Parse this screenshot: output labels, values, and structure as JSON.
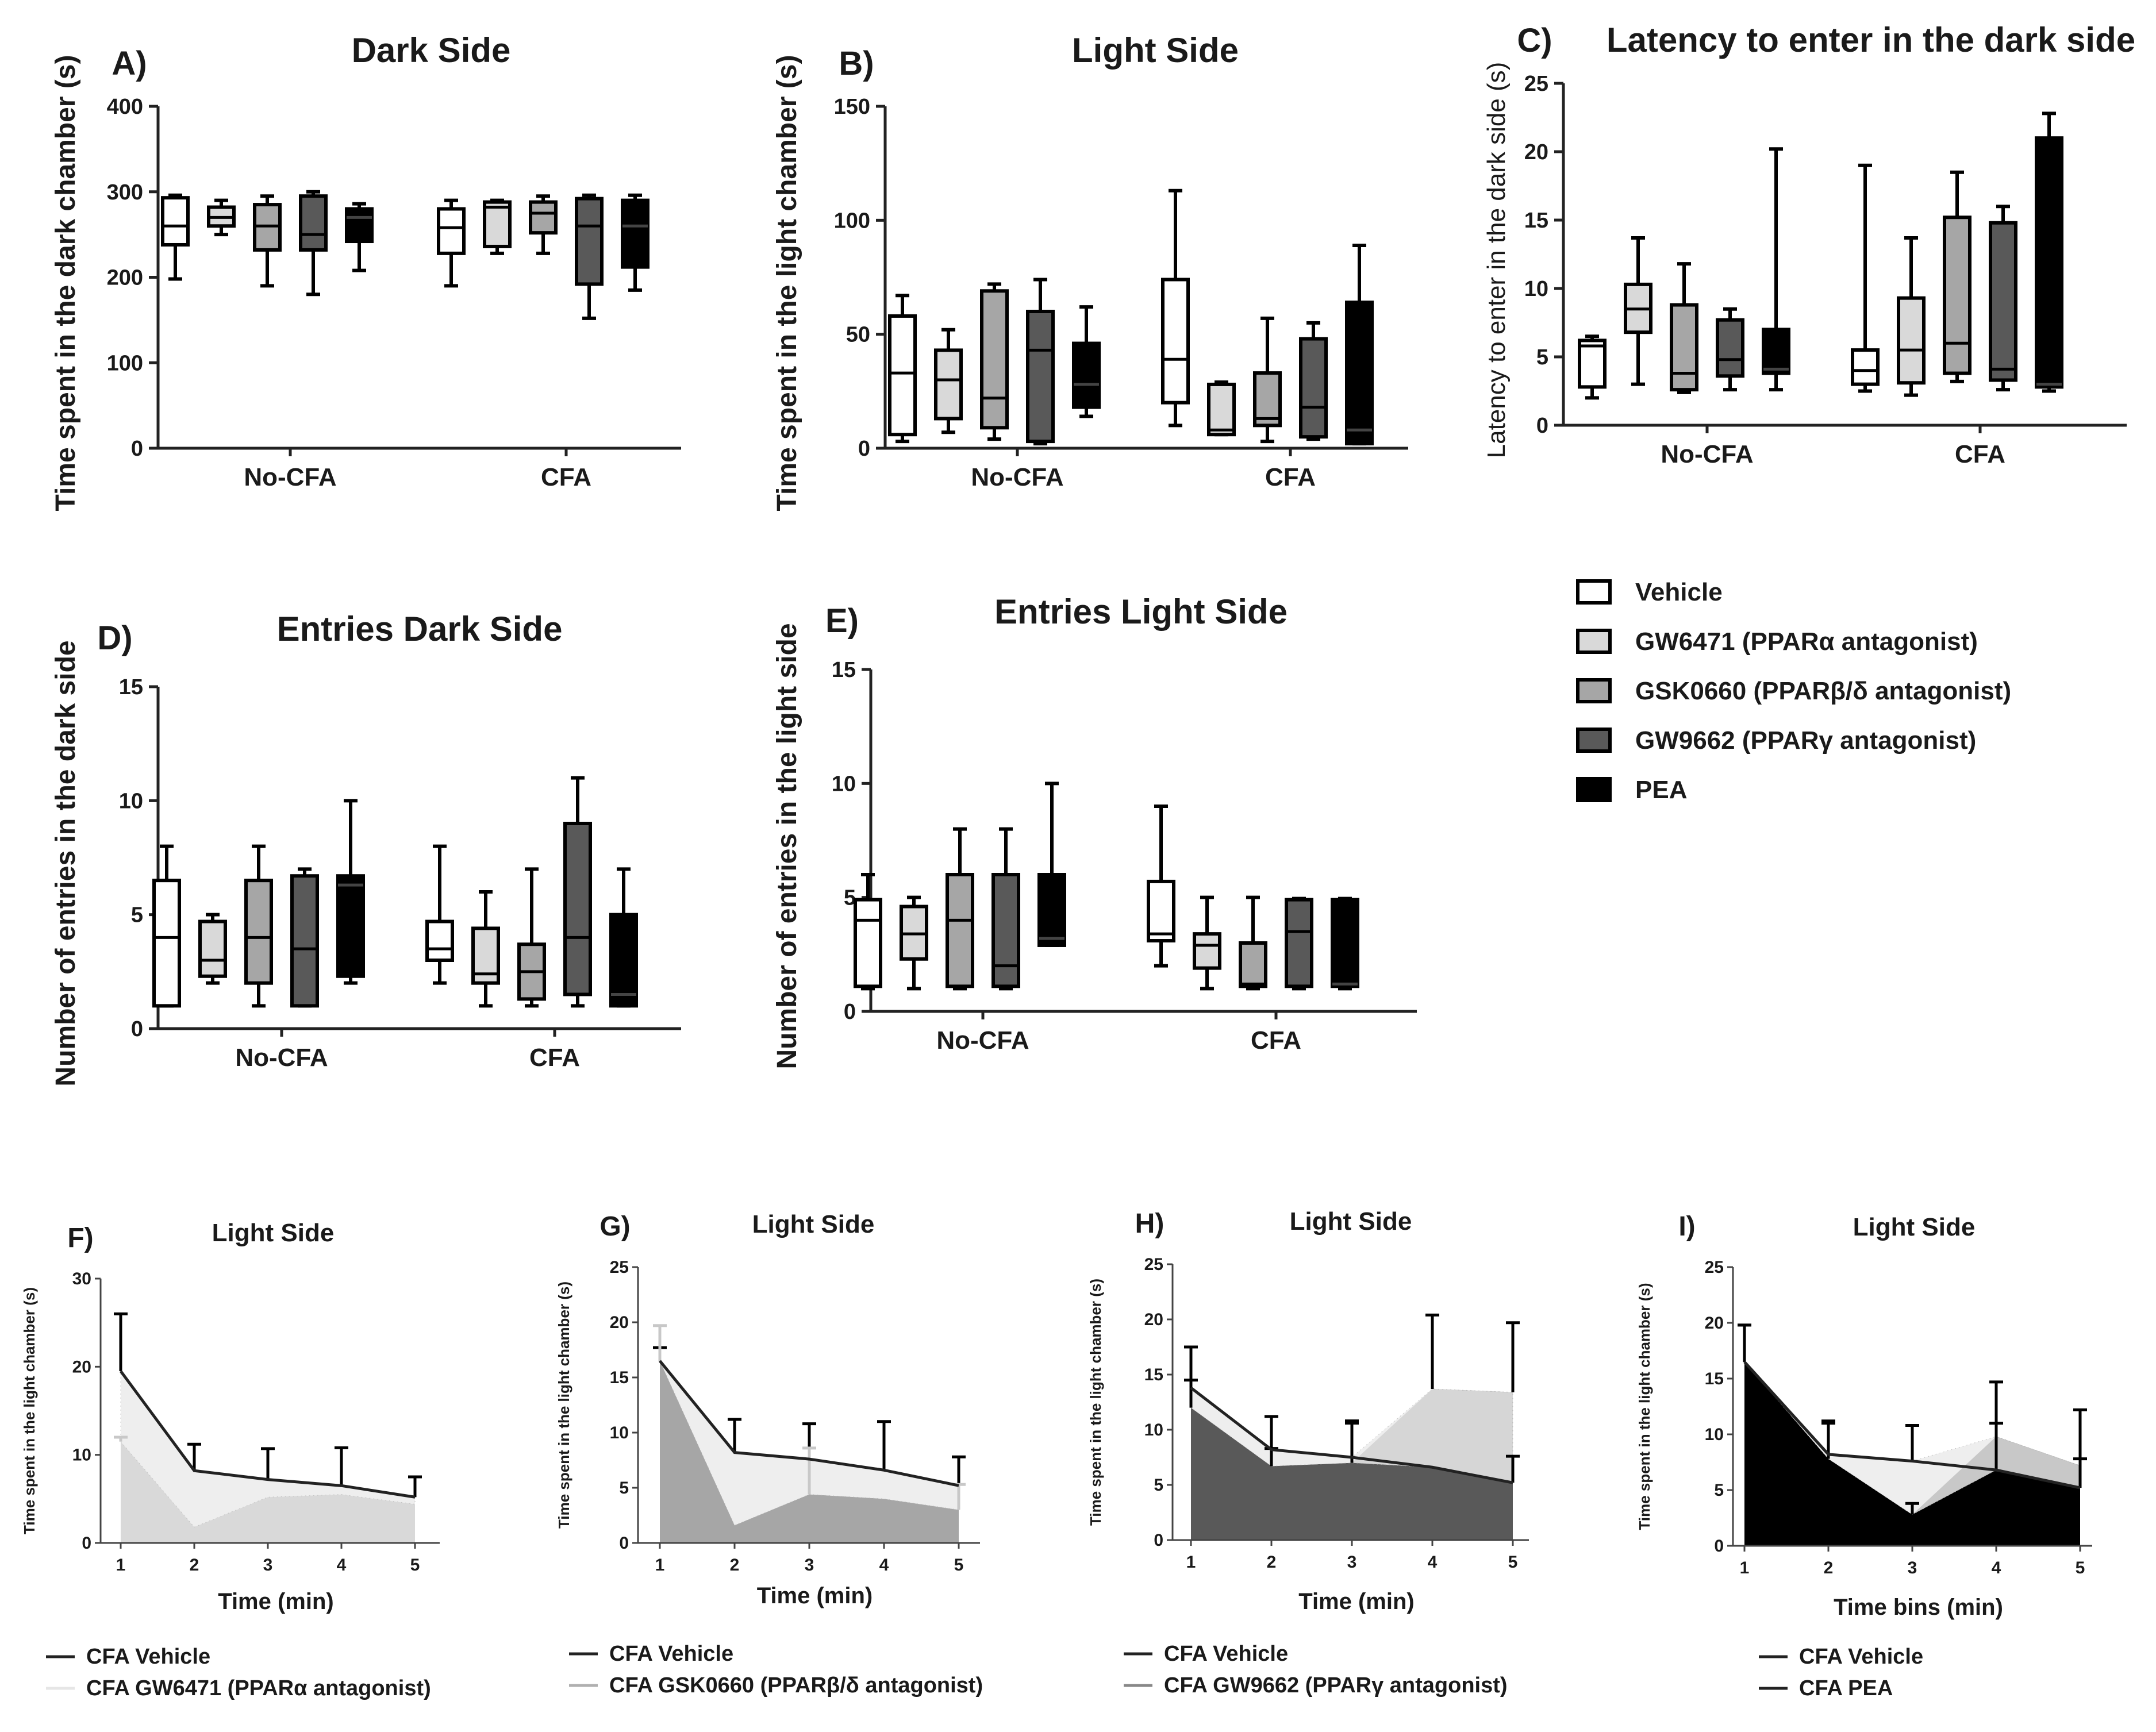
{
  "groups": [
    "No-CFA",
    "CFA"
  ],
  "legend": {
    "items": [
      {
        "label": "Vehicle",
        "color": "#ffffff"
      },
      {
        "label": "GW6471 (PPARα antagonist)",
        "color": "#d9d9d9"
      },
      {
        "label": "GSK0660 (PPARβ/δ antagonist)",
        "color": "#a6a6a6"
      },
      {
        "label": "GW9662 (PPARγ antagonist)",
        "color": "#595959"
      },
      {
        "label": "PEA",
        "color": "#000000"
      }
    ]
  },
  "chart_data": [
    {
      "id": "A",
      "panel": "A)",
      "type": "boxplot",
      "title": "Dark Side",
      "ylabel": "Time spent in the dark chamber (s)",
      "ylim": [
        0,
        400
      ],
      "yticks": [
        "0",
        "100",
        "200",
        "300",
        "400"
      ],
      "series": [
        {
          "name": "Vehicle",
          "boxes": [
            [
              198,
              238,
              260,
              293,
              296
            ],
            [
              190,
              228,
              258,
              280,
              290
            ]
          ]
        },
        {
          "name": "GW6471 (PPARα antagonist)",
          "boxes": [
            [
              250,
              260,
              270,
              282,
              290
            ],
            [
              228,
              236,
              282,
              288,
              290
            ]
          ]
        },
        {
          "name": "GSK0660 (PPARβ/δ antagonist)",
          "boxes": [
            [
              190,
              232,
              260,
              285,
              295
            ],
            [
              228,
              252,
              275,
              288,
              295
            ]
          ]
        },
        {
          "name": "GW9662 (PPARγ antagonist)",
          "boxes": [
            [
              180,
              232,
              250,
              295,
              300
            ],
            [
              152,
              192,
              260,
              292,
              296
            ]
          ]
        },
        {
          "name": "PEA",
          "boxes": [
            [
              208,
              242,
              270,
              280,
              286
            ],
            [
              185,
              212,
              260,
              290,
              296
            ]
          ]
        }
      ]
    },
    {
      "id": "B",
      "panel": "B)",
      "type": "boxplot",
      "title": "Light Side",
      "ylabel": "Time spent in the light chamber (s)",
      "ylim": [
        0,
        150
      ],
      "yticks": [
        "0",
        "50",
        "100",
        "150"
      ],
      "series": [
        {
          "name": "Vehicle",
          "boxes": [
            [
              3,
              6,
              33,
              58,
              67
            ],
            [
              10,
              20,
              39,
              74,
              113
            ]
          ]
        },
        {
          "name": "GW6471 (PPARα antagonist)",
          "boxes": [
            [
              7,
              13,
              30,
              43,
              52
            ],
            [
              6,
              6,
              8,
              28,
              29
            ]
          ]
        },
        {
          "name": "GSK0660 (PPARβ/δ antagonist)",
          "boxes": [
            [
              4,
              9,
              22,
              69,
              72
            ],
            [
              3,
              10,
              13,
              33,
              57
            ]
          ]
        },
        {
          "name": "GW9662 (PPARγ antagonist)",
          "boxes": [
            [
              2,
              3,
              43,
              60,
              74
            ],
            [
              4,
              5,
              18,
              48,
              55
            ]
          ]
        },
        {
          "name": "PEA",
          "boxes": [
            [
              14,
              18,
              28,
              46,
              62
            ],
            [
              2,
              2,
              8,
              64,
              89
            ]
          ]
        }
      ]
    },
    {
      "id": "C",
      "panel": "C)",
      "type": "boxplot",
      "title": "Latency to enter in the dark side",
      "ylabel": "Latency to enter in the dark side (s)",
      "ylim": [
        0,
        25
      ],
      "yticks": [
        "0",
        "5",
        "10",
        "15",
        "20",
        "25"
      ],
      "series": [
        {
          "name": "Vehicle",
          "boxes": [
            [
              2,
              2.8,
              5.8,
              6.2,
              6.5
            ],
            [
              2.5,
              3,
              4,
              5.5,
              19
            ]
          ]
        },
        {
          "name": "GW6471 (PPARα antagonist)",
          "boxes": [
            [
              3,
              6.8,
              8.5,
              10.3,
              13.7
            ],
            [
              2.2,
              3.1,
              5.5,
              9.3,
              13.7
            ]
          ]
        },
        {
          "name": "GSK0660 (PPARβ/δ antagonist)",
          "boxes": [
            [
              2.4,
              2.6,
              3.8,
              8.8,
              11.8
            ],
            [
              3.2,
              3.8,
              6,
              15.2,
              18.5
            ]
          ]
        },
        {
          "name": "GW9662 (PPARγ antagonist)",
          "boxes": [
            [
              2.6,
              3.6,
              4.8,
              7.7,
              8.5
            ],
            [
              2.6,
              3.3,
              4.1,
              14.8,
              16
            ]
          ]
        },
        {
          "name": "PEA",
          "boxes": [
            [
              2.6,
              3.8,
              4.1,
              7,
              20.2
            ],
            [
              2.5,
              2.8,
              3,
              21,
              22.8
            ]
          ]
        }
      ]
    },
    {
      "id": "D",
      "panel": "D)",
      "type": "boxplot",
      "title": "Entries Dark Side",
      "ylabel": "Number of entries in the dark side",
      "ylim": [
        0,
        15
      ],
      "yticks": [
        "0",
        "5",
        "10",
        "15"
      ],
      "series": [
        {
          "name": "Vehicle",
          "boxes": [
            [
              1,
              1,
              4,
              6.5,
              8
            ],
            [
              2,
              3,
              3.5,
              4.7,
              8
            ]
          ]
        },
        {
          "name": "GW6471 (PPARα antagonist)",
          "boxes": [
            [
              2,
              2.3,
              3,
              4.7,
              5
            ],
            [
              1,
              2,
              2.4,
              4.4,
              6
            ]
          ]
        },
        {
          "name": "GSK0660 (PPARβ/δ antagonist)",
          "boxes": [
            [
              1,
              2,
              4,
              6.5,
              8
            ],
            [
              1,
              1.3,
              2.5,
              3.7,
              7
            ]
          ]
        },
        {
          "name": "GW9662 (PPARγ antagonist)",
          "boxes": [
            [
              1,
              1,
              3.5,
              6.7,
              7
            ],
            [
              1,
              1.5,
              4,
              9,
              11
            ]
          ]
        },
        {
          "name": "PEA",
          "boxes": [
            [
              2,
              2.3,
              6.3,
              6.7,
              10
            ],
            [
              1,
              1,
              1.5,
              5,
              7
            ]
          ]
        }
      ]
    },
    {
      "id": "E",
      "panel": "E)",
      "type": "boxplot",
      "title": "Entries Light Side",
      "ylabel": "Number of entries in the light side",
      "ylim": [
        0,
        15
      ],
      "yticks": [
        "0",
        "5",
        "10",
        "15"
      ],
      "series": [
        {
          "name": "Vehicle",
          "boxes": [
            [
              1,
              1.1,
              4,
              4.9,
              6
            ],
            [
              2,
              3.1,
              3.4,
              5.7,
              9
            ]
          ]
        },
        {
          "name": "GW6471 (PPARα antagonist)",
          "boxes": [
            [
              1,
              2.3,
              3.4,
              4.6,
              5
            ],
            [
              1,
              1.9,
              2.9,
              3.4,
              5
            ]
          ]
        },
        {
          "name": "GSK0660 (PPARβ/δ antagonist)",
          "boxes": [
            [
              1,
              1.1,
              4,
              6,
              8
            ],
            [
              1,
              1.1,
              1.2,
              3,
              5
            ]
          ]
        },
        {
          "name": "GW9662 (PPARγ antagonist)",
          "boxes": [
            [
              1,
              1.1,
              2,
              6,
              8
            ],
            [
              1,
              1.1,
              3.5,
              4.9,
              4.95
            ]
          ]
        },
        {
          "name": "PEA",
          "boxes": [
            [
              2.9,
              2.9,
              3.2,
              6,
              10
            ],
            [
              1,
              1.1,
              1.2,
              4.9,
              4.95
            ]
          ]
        }
      ]
    },
    {
      "id": "F",
      "panel": "F)",
      "type": "area",
      "title": "Light Side",
      "xlabel": "Time (min)",
      "ylabel": "Time spent in the light chamber (s)",
      "x": [
        1,
        2,
        3,
        4,
        5
      ],
      "ylim": [
        0,
        30
      ],
      "yticks": [
        "0",
        "10",
        "20",
        "30"
      ],
      "xticks": [
        "1",
        "2",
        "3",
        "4",
        "5"
      ],
      "fill": "#d9d9d9",
      "vehicle": {
        "name": "CFA Vehicle",
        "mean": [
          19.5,
          8.2,
          7.2,
          6.5,
          5.2
        ],
        "sem": [
          6.5,
          3,
          3.5,
          4.3,
          2.3
        ]
      },
      "treatment": {
        "name": "CFA GW6471 (PPARα antagonist)",
        "mean": [
          11.5,
          1.8,
          5.2,
          5.5,
          4.4
        ],
        "sem": [
          0.5,
          0,
          0,
          0,
          0
        ]
      }
    },
    {
      "id": "G",
      "panel": "G)",
      "type": "area",
      "title": "Light Side",
      "xlabel": "Time  (min)",
      "ylabel": "Time spent in the light chamber (s)",
      "x": [
        1,
        2,
        3,
        4,
        5
      ],
      "ylim": [
        0,
        25
      ],
      "yticks": [
        "0",
        "5",
        "10",
        "15",
        "20",
        "25"
      ],
      "xticks": [
        "1",
        "2",
        "3",
        "4",
        "5"
      ],
      "fill": "#a6a6a6",
      "vehicle": {
        "name": "CFA Vehicle",
        "mean": [
          16.5,
          8.2,
          7.6,
          6.6,
          5.2
        ],
        "sem": [
          1.2,
          3,
          3.2,
          4.4,
          2.6
        ]
      },
      "treatment": {
        "name": "CFA GSK0660 (PPARβ/δ antagonist)",
        "mean": [
          16.5,
          1.6,
          4.4,
          4,
          3
        ],
        "sem": [
          3.2,
          0,
          4.2,
          0,
          2.3
        ]
      }
    },
    {
      "id": "H",
      "panel": "H)",
      "type": "area",
      "title": "Light Side",
      "xlabel": "Time (min)",
      "ylabel": "Time spent in the light chamber (s)",
      "x": [
        1,
        2,
        3,
        4,
        5
      ],
      "ylim": [
        0,
        25
      ],
      "yticks": [
        "0",
        "5",
        "10",
        "15",
        "20",
        "25"
      ],
      "xticks": [
        "1",
        "2",
        "3",
        "4",
        "5"
      ],
      "fill": "#595959",
      "vehicle": {
        "name": "CFA Vehicle",
        "mean": [
          13.8,
          8.2,
          7.5,
          6.6,
          5.2
        ],
        "sem": [
          3.7,
          3,
          3.3,
          0,
          2.4
        ]
      },
      "treatment": {
        "name": "CFA GW9662 (PPARγ antagonist)",
        "mean": [
          12,
          6.7,
          7,
          13.7,
          13.4
        ],
        "sem": [
          2.5,
          1.6,
          3.6,
          6.7,
          6.3
        ]
      }
    },
    {
      "id": "I",
      "panel": "I)",
      "type": "area",
      "title": "Light Side",
      "xlabel": "Time bins (min)",
      "ylabel": "Time spent in the light chamber (s)",
      "x": [
        1,
        2,
        3,
        4,
        5
      ],
      "ylim": [
        0,
        25
      ],
      "yticks": [
        "0",
        "5",
        "10",
        "15",
        "20",
        "25"
      ],
      "xticks": [
        "1",
        "2",
        "3",
        "4",
        "5"
      ],
      "fill": "#000000",
      "vehicle": {
        "name": "CFA Vehicle",
        "mean": [
          16.5,
          8.2,
          7.6,
          6.8,
          5.2
        ],
        "sem": [
          3.3,
          3,
          3.2,
          4.2,
          2.6
        ]
      },
      "treatment": {
        "name": "CFA PEA",
        "mean": [
          16.5,
          7.8,
          2.8,
          9.8,
          7.2
        ],
        "sem": [
          3.3,
          3.2,
          1,
          4.9,
          5
        ]
      }
    }
  ]
}
